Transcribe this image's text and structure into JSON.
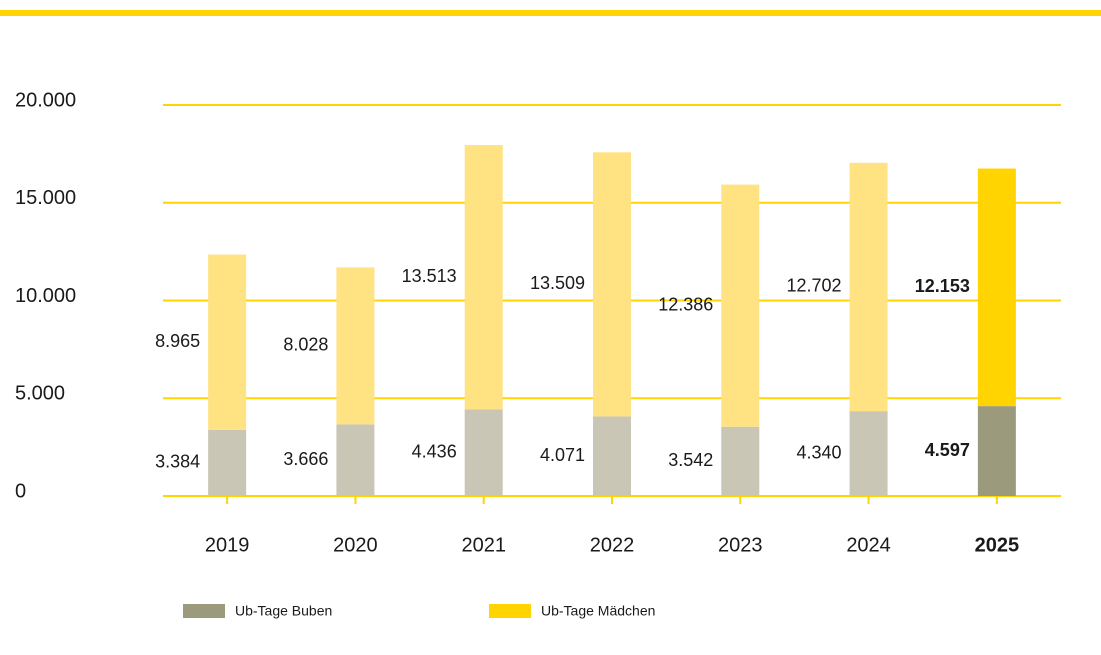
{
  "chart_data": {
    "type": "stacked_bar",
    "categories": [
      "2019",
      "2020",
      "2021",
      "2022",
      "2023",
      "2024",
      "2025"
    ],
    "series": [
      {
        "name": "Ub-Tage Buben",
        "color": "#9c9a7c",
        "colors": [
          "#c9c6b5",
          "#c9c6b5",
          "#c9c6b5",
          "#c9c6b5",
          "#c9c6b5",
          "#c9c6b5",
          "#9c9a7c"
        ],
        "values": [
          3384,
          3666,
          4436,
          4071,
          3542,
          4340,
          4597
        ],
        "value_labels": [
          "3.384",
          "3.666",
          "4.436",
          "4.071",
          "3.542",
          "4.340",
          "4.597"
        ]
      },
      {
        "name": "Ub-Tage Mädchen",
        "color": "#ffd400",
        "colors": [
          "#ffe281",
          "#ffe281",
          "#ffe281",
          "#ffe281",
          "#ffe281",
          "#ffe281",
          "#ffd400"
        ],
        "values": [
          8965,
          8028,
          13513,
          13509,
          12386,
          12702,
          12153
        ],
        "value_labels": [
          "8.965",
          "8.028",
          "13.513",
          "13.509",
          "12.386",
          "12.702",
          "12.153"
        ]
      }
    ],
    "ylim": [
      0,
      20000
    ],
    "yticks": [
      0,
      {
        "value": 5000,
        "label": "5.000"
      },
      {
        "value": 10000,
        "label": "10.000"
      },
      {
        "value": 15000,
        "label": "15.000"
      },
      {
        "value": 20000,
        "label": "20.000"
      }
    ],
    "grid": true,
    "grid_color": "#ffd400"
  }
}
